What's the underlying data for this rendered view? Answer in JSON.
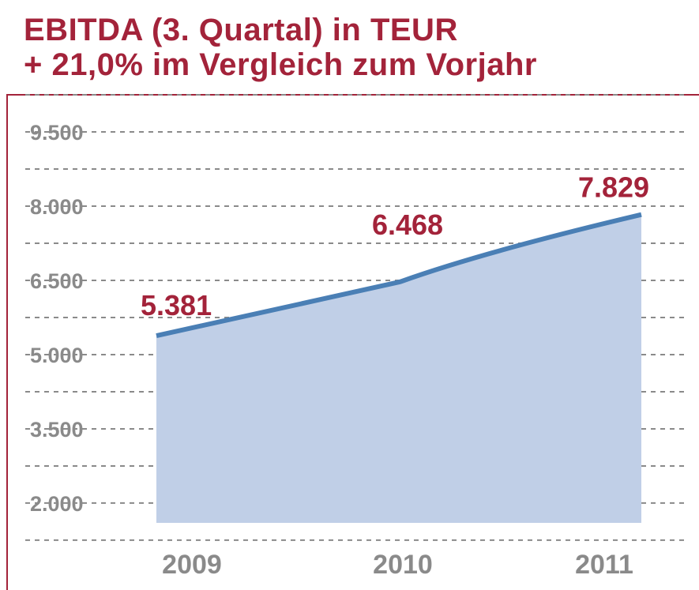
{
  "title": {
    "line1": "EBITDA (3. Quartal) in TEUR",
    "line2": "+ 21,0% im Vergleich zum Vorjahr"
  },
  "colors": {
    "accent": "#a3233a",
    "line": "#4a7fb5",
    "area": "#c0cfe7",
    "tick_text": "#8a8a8a",
    "grid": "#8a8a8a"
  },
  "chart_data": {
    "type": "area",
    "categories": [
      "2009",
      "2010",
      "2011"
    ],
    "values": [
      5381,
      6468,
      7829
    ],
    "data_labels": [
      "5.381",
      "6.468",
      "7.829"
    ],
    "yticks": [
      2000,
      3500,
      5000,
      6500,
      8000,
      9500
    ],
    "ytick_labels": [
      "2.000",
      "3.500",
      "5.000",
      "6.500",
      "8.000",
      "9.500"
    ],
    "ylim": [
      1600,
      10250
    ],
    "grid": true,
    "grid_style": "dashed"
  }
}
